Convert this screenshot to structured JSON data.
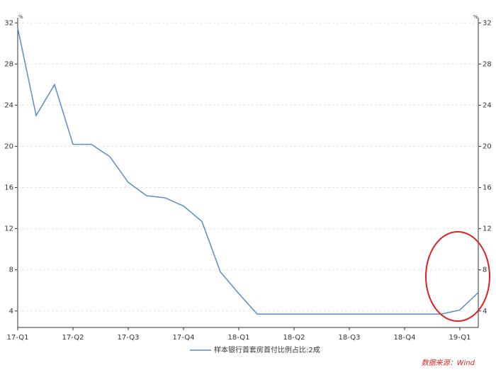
{
  "chart_data": {
    "type": "line",
    "categories": [
      "17-Q1",
      null,
      null,
      "17-Q2",
      null,
      null,
      "17-Q3",
      null,
      null,
      "17-Q4",
      null,
      null,
      "18-Q1",
      null,
      null,
      "18-Q2",
      null,
      null,
      "18-Q3",
      null,
      null,
      "18-Q4",
      null,
      null,
      "19-Q1",
      null
    ],
    "series": [
      {
        "name": "样本银行首套房首付比例占比:2成",
        "color": "#5b8cc8",
        "values": [
          31.5,
          23,
          26,
          20.2,
          20.2,
          19,
          16.5,
          15.2,
          15,
          14.2,
          12.7,
          7.8,
          5.7,
          3.7,
          3.7,
          3.7,
          3.7,
          3.7,
          3.7,
          3.7,
          3.7,
          3.7,
          3.7,
          3.7,
          4.1,
          5.8
        ]
      }
    ],
    "ylim": [
      2.4,
      32.5
    ],
    "yticks": [
      4,
      8,
      12,
      16,
      20,
      24,
      28,
      32
    ],
    "y2lim": [
      2.4,
      32.5
    ],
    "y2ticks": [
      4,
      8,
      12,
      16,
      20,
      24,
      28,
      32
    ],
    "y_unit": "%",
    "y2_unit": "%",
    "grid": true,
    "source": "数据来源：Wind"
  }
}
